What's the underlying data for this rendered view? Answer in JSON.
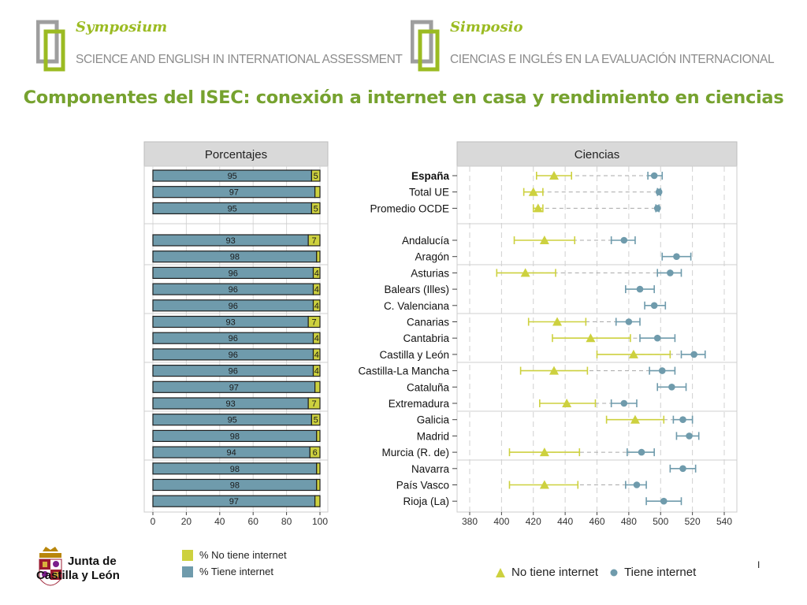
{
  "header": {
    "logo_en": {
      "script": "Symposium",
      "subtitle": "SCIENCE AND ENGLISH IN INTERNATIONAL ASSESSMENT"
    },
    "logo_es": {
      "script": "Simposio",
      "subtitle": "CIENCIAS E INGLÉS EN LA  EVALUACIÓN INTERNACIONAL"
    },
    "title": "Componentes del ISEC: conexión a internet en casa y rendimiento en ciencias"
  },
  "colors": {
    "brand_green": "#76a22f",
    "logo_green": "#9bbb22",
    "no_internet": "#cdd13f",
    "internet": "#6f9bac",
    "panel_header": "#d9d9d9"
  },
  "chart_data": [
    {
      "type": "bar",
      "title": "Porcentajes",
      "orientation": "horizontal",
      "stacked": true,
      "categories": [
        "España",
        "Total UE",
        "Promedio OCDE",
        "Andalucía",
        "Aragón",
        "Asturias",
        "Balears (Illes)",
        "C. Valenciana",
        "Canarias",
        "Cantabria",
        "Castilla y León",
        "Castilla-La Mancha",
        "Cataluña",
        "Extremadura",
        "Galicia",
        "Madrid",
        "Murcia (R. de)",
        "Navarra",
        "País Vasco",
        "Rioja (La)"
      ],
      "series": [
        {
          "name": "% Tiene internet",
          "values": [
            95,
            97,
            95,
            93,
            98,
            96,
            96,
            96,
            93,
            96,
            96,
            96,
            97,
            93,
            95,
            98,
            94,
            98,
            98,
            97
          ]
        },
        {
          "name": "% No tiene internet",
          "values": [
            5,
            3,
            5,
            7,
            2,
            4,
            4,
            4,
            7,
            4,
            4,
            4,
            3,
            7,
            5,
            2,
            6,
            2,
            2,
            3
          ]
        }
      ],
      "labels_tiene": [
        "95",
        "97",
        "95",
        "93",
        "98",
        "96",
        "96",
        "96",
        "93",
        "96",
        "96",
        "96",
        "97",
        "93",
        "95",
        "98",
        "94",
        "98",
        "98",
        "97"
      ],
      "labels_no": [
        "5",
        "",
        "5",
        "7",
        "",
        "4",
        "4",
        "4",
        "7",
        "4",
        "4",
        "4",
        "",
        "7",
        "5",
        "",
        "6",
        "",
        "",
        ""
      ],
      "xlim": [
        0,
        100
      ],
      "xticks": [
        "0",
        "20",
        "40",
        "60",
        "80",
        "100"
      ],
      "grid": true
    },
    {
      "type": "scatter",
      "title": "Ciencias",
      "categories": [
        "España",
        "Total UE",
        "Promedio OCDE",
        "Andalucía",
        "Aragón",
        "Asturias",
        "Balears (Illes)",
        "C. Valenciana",
        "Canarias",
        "Cantabria",
        "Castilla y León",
        "Castilla-La Mancha",
        "Cataluña",
        "Extremadura",
        "Galicia",
        "Madrid",
        "Murcia (R. de)",
        "Navarra",
        "País Vasco",
        "Rioja (La)"
      ],
      "series": [
        {
          "name": "No tiene internet",
          "marker": "triangle",
          "values": [
            433,
            420,
            423,
            427,
            null,
            415,
            null,
            null,
            435,
            456,
            483,
            433,
            null,
            441,
            484,
            null,
            427,
            null,
            427,
            null
          ],
          "low": [
            422,
            414,
            420,
            408,
            null,
            397,
            null,
            null,
            417,
            432,
            460,
            412,
            null,
            424,
            466,
            null,
            405,
            null,
            405,
            null
          ],
          "high": [
            444,
            426,
            426,
            446,
            null,
            434,
            null,
            null,
            453,
            481,
            506,
            454,
            null,
            459,
            502,
            null,
            449,
            null,
            448,
            null
          ]
        },
        {
          "name": "Tiene internet",
          "marker": "circle",
          "values": [
            496,
            499,
            498,
            477,
            510,
            506,
            487,
            496,
            480,
            498,
            521,
            501,
            507,
            477,
            514,
            518,
            488,
            514,
            485,
            502
          ],
          "low": [
            492,
            498,
            497,
            469,
            501,
            498,
            478,
            490,
            472,
            487,
            513,
            493,
            498,
            469,
            508,
            510,
            479,
            506,
            478,
            491
          ],
          "high": [
            501,
            500,
            499,
            484,
            519,
            513,
            496,
            503,
            487,
            509,
            528,
            509,
            516,
            485,
            520,
            524,
            496,
            522,
            491,
            513
          ]
        }
      ],
      "xlim": [
        380,
        540
      ],
      "xticks": [
        "380",
        "400",
        "420",
        "440",
        "460",
        "480",
        "500",
        "520",
        "540"
      ],
      "grid": true
    }
  ],
  "legend_bars": [
    {
      "label": "% No tiene internet",
      "color": "#cdd13f"
    },
    {
      "label": "% Tiene internet",
      "color": "#6f9bac"
    }
  ],
  "legend_dots": [
    {
      "label": "No tiene internet",
      "color": "#cdd13f",
      "marker": "triangle"
    },
    {
      "label": "Tiene internet",
      "color": "#6f9bac",
      "marker": "circle"
    }
  ],
  "footer": {
    "org_line1": "Junta de",
    "org_line2": "Castilla y León",
    "page_mark": "I"
  }
}
